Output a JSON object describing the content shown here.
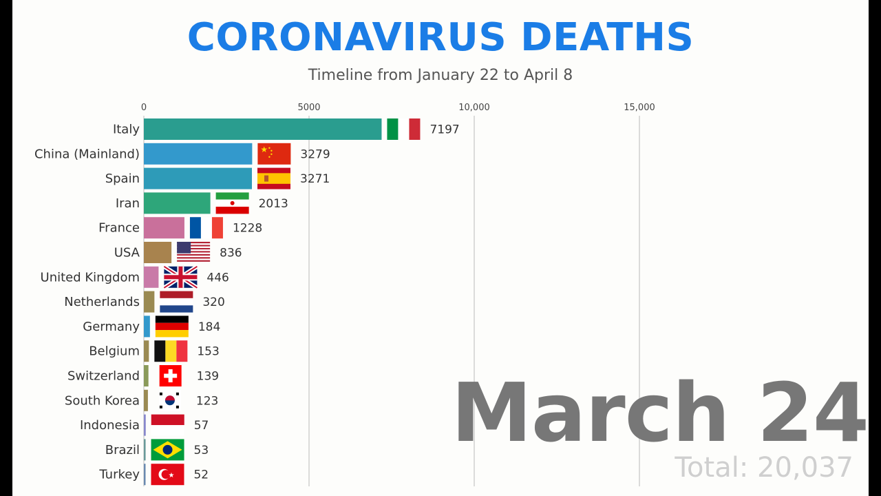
{
  "title": "CORONAVIRUS DEATHS",
  "subtitle": "Timeline from January 22 to April 8",
  "current_date": "March 24",
  "total_text": "Total: 20,037",
  "chart_data": {
    "type": "bar",
    "orientation": "horizontal",
    "title": "CORONAVIRUS DEATHS",
    "subtitle": "Timeline from January 22 to April 8",
    "xlabel": "",
    "ylabel": "",
    "xlim": [
      0,
      20000
    ],
    "ticks": [
      {
        "value": 0,
        "label": "0"
      },
      {
        "value": 5000,
        "label": "5000"
      },
      {
        "value": 10000,
        "label": "10,000"
      },
      {
        "value": 15000,
        "label": "15,000"
      }
    ],
    "grid": true,
    "categories": [
      "Italy",
      "China (Mainland)",
      "Spain",
      "Iran",
      "France",
      "USA",
      "United Kingdom",
      "Netherlands",
      "Germany",
      "Belgium",
      "Switzerland",
      "South Korea",
      "Indonesia",
      "Brazil",
      "Turkey"
    ],
    "values": [
      7197,
      3279,
      3271,
      2013,
      1228,
      836,
      446,
      320,
      184,
      153,
      139,
      123,
      57,
      53,
      52
    ],
    "value_labels": [
      "7197",
      "3279",
      "3271",
      "2013",
      "1228",
      "836",
      "446",
      "320",
      "184",
      "153",
      "139",
      "123",
      "57",
      "53",
      "52"
    ],
    "colors": [
      "#2a9d8f",
      "#3399cc",
      "#2e9bb8",
      "#2ea67a",
      "#c9709b",
      "#a8834e",
      "#c97aa8",
      "#9a8a52",
      "#3399cc",
      "#9a8a52",
      "#8a9a5a",
      "#9a8a52",
      "#8888cc",
      "#6a9a9a",
      "#6a8ab0"
    ],
    "flags": [
      "italy-flag",
      "china-flag",
      "spain-flag",
      "iran-flag",
      "france-flag",
      "usa-flag",
      "uk-flag",
      "netherlands-flag",
      "germany-flag",
      "belgium-flag",
      "switzerland-flag",
      "south-korea-flag",
      "indonesia-flag",
      "brazil-flag",
      "turkey-flag"
    ]
  }
}
